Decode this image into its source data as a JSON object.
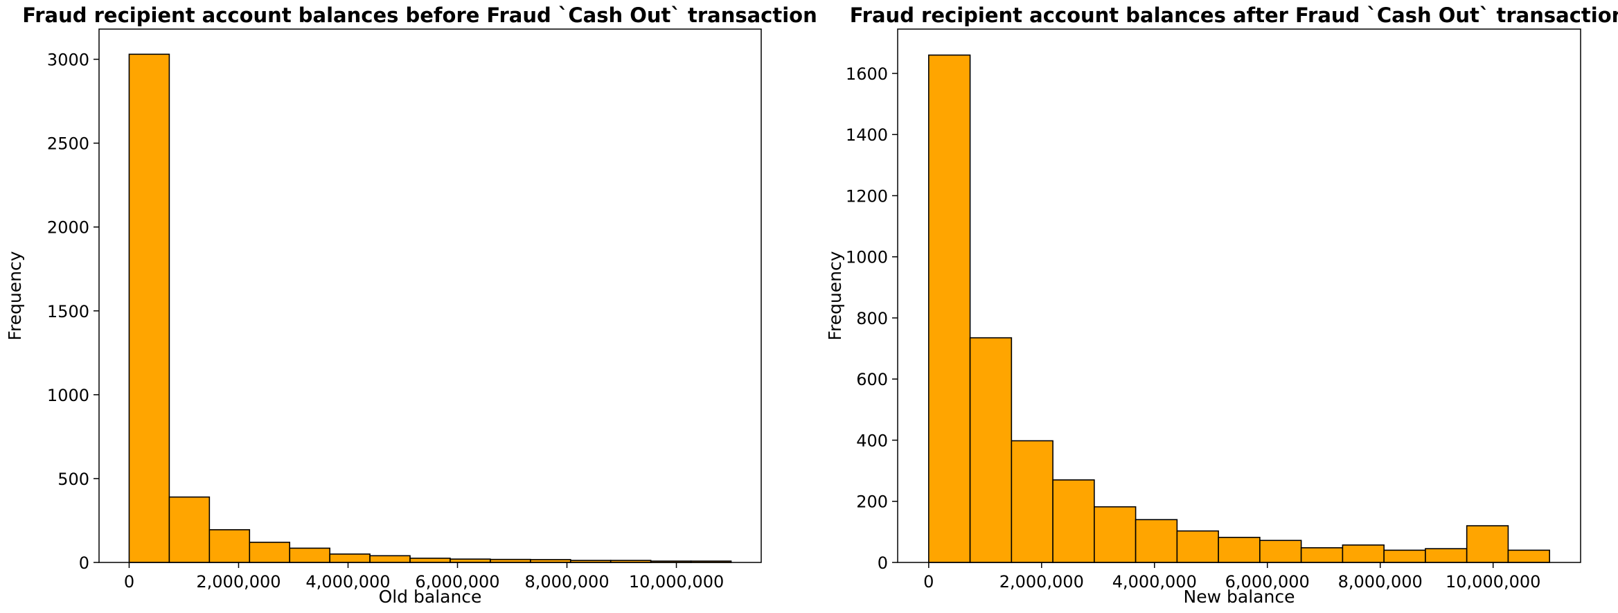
{
  "chart_data": [
    {
      "type": "bar",
      "subtype": "histogram",
      "title": "Fraud recipient account balances before Fraud `Cash Out` transaction",
      "xlabel": "Old balance",
      "ylabel": "Frequency",
      "bin_edges": [
        0,
        733333,
        1466667,
        2200000,
        2933333,
        3666667,
        4400000,
        5133333,
        5866667,
        6600000,
        7333333,
        8066667,
        8800000,
        9533333,
        10266667,
        11000000
      ],
      "values": [
        3030,
        390,
        195,
        120,
        85,
        50,
        40,
        25,
        20,
        18,
        17,
        12,
        12,
        8,
        8
      ],
      "xlim": [
        -550000,
        11550000
      ],
      "ylim": [
        0,
        3180
      ],
      "xticks": [
        0,
        2000000,
        4000000,
        6000000,
        8000000,
        10000000
      ],
      "xtick_labels": [
        "0",
        "2,000,000",
        "4,000,000",
        "6,000,000",
        "8,000,000",
        "10,000,000"
      ],
      "yticks": [
        0,
        500,
        1000,
        1500,
        2000,
        2500,
        3000
      ],
      "ytick_labels": [
        "0",
        "500",
        "1000",
        "1500",
        "2000",
        "2500",
        "3000"
      ],
      "bar_color": "#FFA500",
      "edge_color": "#000000",
      "grid": false,
      "legend": "none"
    },
    {
      "type": "bar",
      "subtype": "histogram",
      "title": "Fraud recipient account balances after Fraud `Cash Out` transaction",
      "xlabel": "New balance",
      "ylabel": "Frequency",
      "bin_edges": [
        0,
        733333,
        1466667,
        2200000,
        2933333,
        3666667,
        4400000,
        5133333,
        5866667,
        6600000,
        7333333,
        8066667,
        8800000,
        9533333,
        10266667,
        11000000
      ],
      "values": [
        1660,
        735,
        398,
        270,
        182,
        140,
        103,
        82,
        72,
        48,
        57,
        40,
        45,
        120,
        40
      ],
      "xlim": [
        -550000,
        11550000
      ],
      "ylim": [
        0,
        1745
      ],
      "xticks": [
        0,
        2000000,
        4000000,
        6000000,
        8000000,
        10000000
      ],
      "xtick_labels": [
        "0",
        "2,000,000",
        "4,000,000",
        "6,000,000",
        "8,000,000",
        "10,000,000"
      ],
      "yticks": [
        0,
        200,
        400,
        600,
        800,
        1000,
        1200,
        1400,
        1600
      ],
      "ytick_labels": [
        "0",
        "200",
        "400",
        "600",
        "800",
        "1000",
        "1200",
        "1400",
        "1600"
      ],
      "bar_color": "#FFA500",
      "edge_color": "#000000",
      "grid": false,
      "legend": "none"
    }
  ]
}
